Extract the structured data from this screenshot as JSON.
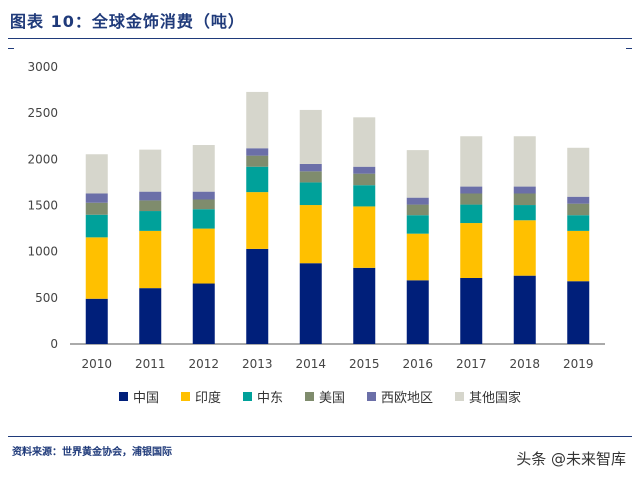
{
  "header": {
    "title": "图表 10：全球金饰消费（吨）"
  },
  "footer": {
    "source": "资料来源：世界黄金协会，浦银国际",
    "watermark": "头条 @未来智库"
  },
  "colors": {
    "中国": "#001f7a",
    "印度": "#ffc000",
    "中东": "#00a19a",
    "美国": "#7f8c6d",
    "西欧地区": "#6b6fa8",
    "其他国家": "#d6d6cc",
    "axis": "#555555"
  },
  "chart_data": {
    "type": "bar",
    "stacked": true,
    "title": "全球金饰消费（吨）",
    "xlabel": "",
    "ylabel": "",
    "ylim": [
      0,
      3000
    ],
    "yticks": [
      0,
      500,
      1000,
      1500,
      2000,
      2500,
      3000
    ],
    "grid": false,
    "legend": "bottom",
    "categories": [
      "2010",
      "2011",
      "2012",
      "2013",
      "2014",
      "2015",
      "2016",
      "2017",
      "2018",
      "2019"
    ],
    "series": [
      {
        "name": "中国",
        "values": [
          490,
          605,
          655,
          1030,
          875,
          825,
          690,
          715,
          740,
          680
        ]
      },
      {
        "name": "印度",
        "values": [
          665,
          620,
          595,
          615,
          630,
          665,
          505,
          595,
          600,
          545
        ]
      },
      {
        "name": "中东",
        "values": [
          245,
          215,
          210,
          275,
          245,
          230,
          200,
          200,
          165,
          170
        ]
      },
      {
        "name": "美国",
        "values": [
          130,
          115,
          105,
          120,
          120,
          125,
          115,
          120,
          125,
          125
        ]
      },
      {
        "name": "西欧地区",
        "values": [
          100,
          95,
          85,
          80,
          80,
          75,
          75,
          75,
          75,
          75
        ]
      },
      {
        "name": "其他国家",
        "values": [
          425,
          455,
          505,
          610,
          585,
          535,
          515,
          545,
          545,
          530
        ]
      }
    ]
  }
}
